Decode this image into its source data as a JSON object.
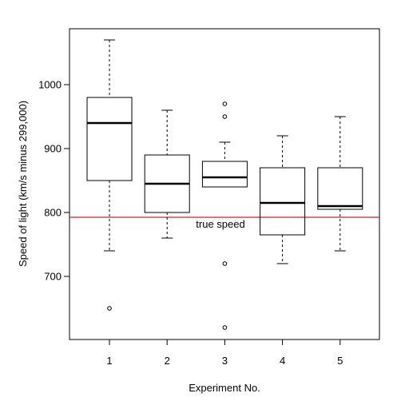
{
  "chart_data": {
    "type": "boxplot",
    "xlabel": "Experiment No.",
    "ylabel": "Speed of light (km/s minus 299,000)",
    "ylim": [
      580,
      1100
    ],
    "yticks": [
      700,
      800,
      900,
      1000
    ],
    "categories": [
      "1",
      "2",
      "3",
      "4",
      "5"
    ],
    "boxes": [
      {
        "category": "1",
        "whisker_low": 740,
        "q1": 850,
        "median": 940,
        "q3": 980,
        "whisker_high": 1070,
        "outliers": [
          650
        ]
      },
      {
        "category": "2",
        "whisker_low": 760,
        "q1": 800,
        "median": 845,
        "q3": 890,
        "whisker_high": 960,
        "outliers": []
      },
      {
        "category": "3",
        "whisker_low": 840,
        "q1": 840,
        "median": 855,
        "q3": 880,
        "whisker_high": 910,
        "outliers": [
          950,
          970,
          720,
          620
        ]
      },
      {
        "category": "4",
        "whisker_low": 720,
        "q1": 765,
        "median": 815,
        "q3": 870,
        "whisker_high": 920,
        "outliers": []
      },
      {
        "category": "5",
        "whisker_low": 740,
        "q1": 805,
        "median": 810,
        "q3": 870,
        "whisker_high": 950,
        "outliers": []
      }
    ],
    "reference_line": {
      "value": 792.5,
      "label": "true speed",
      "color": "#e41a1c"
    }
  }
}
